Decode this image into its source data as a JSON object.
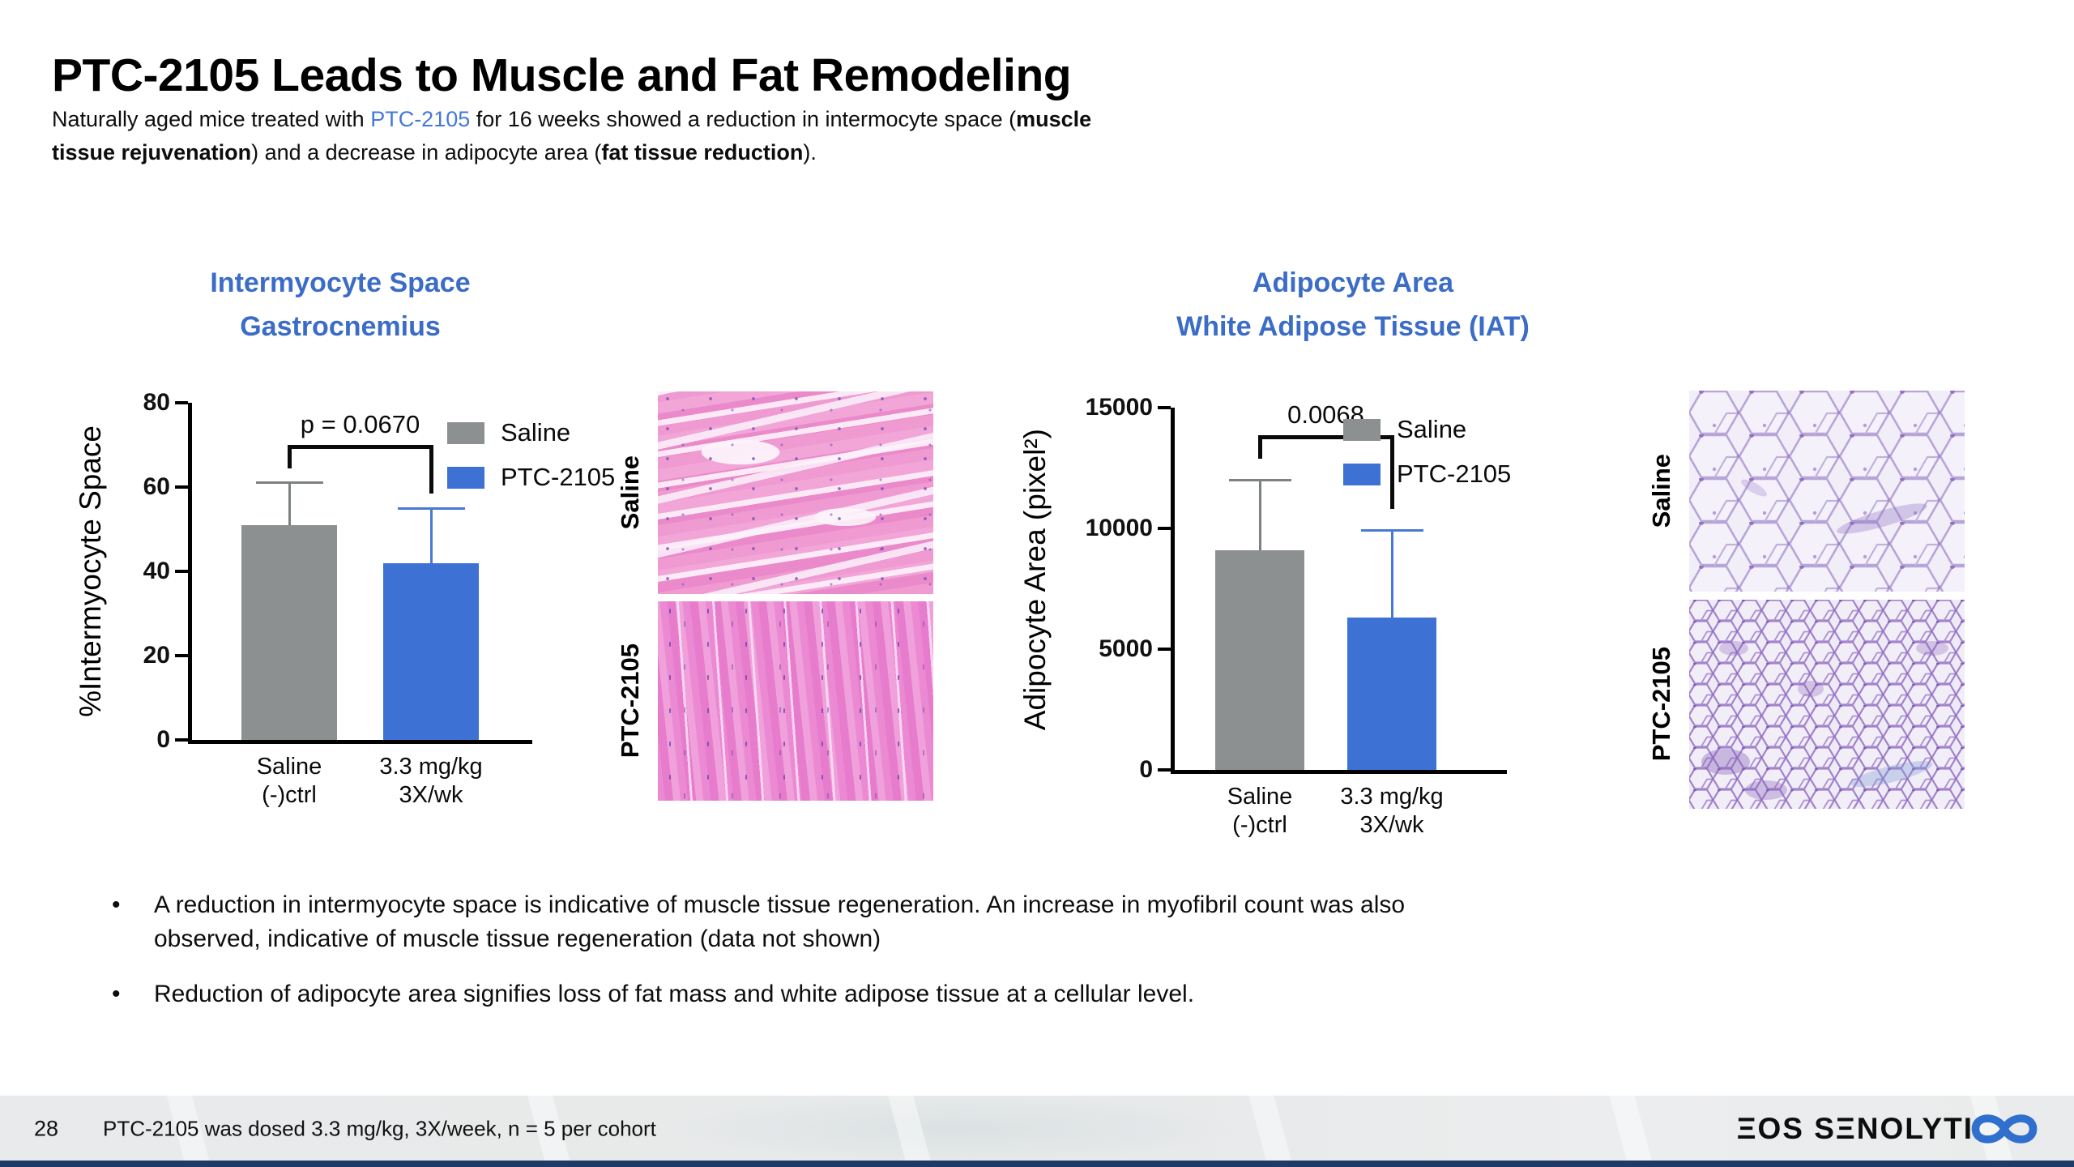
{
  "slide": {
    "title": "PTC-2105 Leads to Muscle and Fat Remodeling",
    "intro": {
      "pre": "Naturally aged mice treated with ",
      "drug": "PTC-2105",
      "mid1": " for 16 weeks showed a reduction in intermocyte space (",
      "bold_a": "muscle",
      "bold_b": "tissue rejuvenation",
      "mid2": ") and a decrease in adipocyte area (",
      "bold_c": "fat tissue reduction",
      "end": ")."
    },
    "bullets": [
      [
        "A reduction in intermyocyte space is indicative of muscle tissue regeneration. An increase in myofibril count was also",
        "observed, indicative of muscle tissue regeneration (data not shown)"
      ],
      [
        "Reduction of adipocyte area signifies loss of fat mass and white adipose tissue at a cellular level."
      ]
    ],
    "footer": {
      "page_number": "28",
      "note": "PTC-2105 was dosed 3.3 mg/kg, 3X/week, n = 5 per cohort",
      "logo_text": "ΞOS SΞNOLYTI",
      "logo_accent_color": "#2F6FCE"
    }
  },
  "histology": {
    "muscle": {
      "top_label": "Saline",
      "bottom_label": "PTC-2105"
    },
    "adipose": {
      "top_label": "Saline",
      "bottom_label": "PTC-2105"
    }
  },
  "chart_data": [
    {
      "type": "bar",
      "title": [
        "Intermyocyte Space",
        "Gastrocnemius"
      ],
      "ylabel": "%Intermyocyte Space",
      "xlabel": "",
      "ylim": [
        0,
        80
      ],
      "yticks": [
        0,
        20,
        40,
        60,
        80
      ],
      "grid": false,
      "legend_position": "upper-right",
      "categories": [
        [
          "Saline",
          "(-)ctrl"
        ],
        [
          "3.3 mg/kg",
          "3X/wk"
        ]
      ],
      "series": [
        {
          "name": "Saline",
          "value": 51,
          "error_top": 61,
          "color": "#8C9091",
          "error_color": "#7E8182"
        },
        {
          "name": "PTC-2105",
          "value": 42,
          "error_top": 55,
          "color": "#3D72D4",
          "error_color": "#4A79D4"
        }
      ],
      "significance": {
        "label": "p = 0.0670",
        "y": 69,
        "left_drop_to": 64.5,
        "right_drop_to": 58.5
      }
    },
    {
      "type": "bar",
      "title": [
        "Adipocyte Area",
        "White Adipose Tissue (IAT)"
      ],
      "ylabel": "Adipocyte Area (pixel²)",
      "xlabel": "",
      "ylim": [
        0,
        15000
      ],
      "yticks": [
        0,
        5000,
        10000,
        15000
      ],
      "grid": false,
      "legend_position": "upper-right",
      "categories": [
        [
          "Saline",
          "(-)ctrl"
        ],
        [
          "3.3 mg/kg",
          "3X/wk"
        ]
      ],
      "series": [
        {
          "name": "Saline",
          "value": 9100,
          "error_top": 12000,
          "color": "#8C9091",
          "error_color": "#7E8182"
        },
        {
          "name": "PTC-2105",
          "value": 6300,
          "error_top": 9900,
          "color": "#3D72D4",
          "error_color": "#4A79D4"
        }
      ],
      "significance": {
        "label": "0.0068",
        "y": 13700,
        "left_drop_to": 12900,
        "right_drop_to": 10800
      }
    }
  ],
  "colors": {
    "accent_blue": "#3B6CC7",
    "bar_gray": "#8C9091",
    "bar_blue": "#3D72D4",
    "footer_bg": "#E9EBED",
    "bottom_strip": "#1F3A66"
  }
}
